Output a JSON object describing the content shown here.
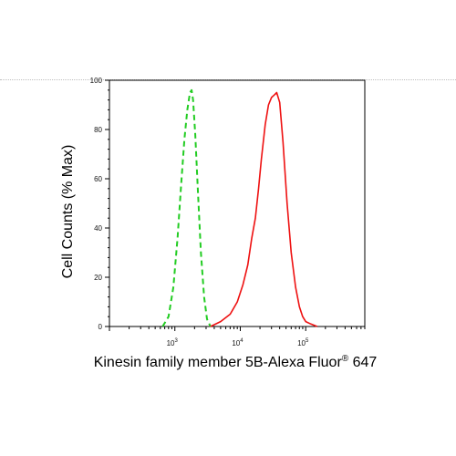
{
  "chart_data": {
    "type": "line",
    "xlabel_main": "Kinesin family member 5B-Alexa Fluor",
    "xlabel_sup": "®",
    "xlabel_tail": " 647",
    "ylabel": "Cell Counts (% Max)",
    "x_scale": "log",
    "xlim": [
      100,
      800000
    ],
    "ylim": [
      0,
      100
    ],
    "x_ticks": [
      {
        "value": 1000,
        "base": "10",
        "exp": "3"
      },
      {
        "value": 10000,
        "base": "10",
        "exp": "4"
      },
      {
        "value": 100000,
        "base": "10",
        "exp": "5"
      }
    ],
    "y_ticks": [
      "0",
      "20",
      "40",
      "60",
      "80",
      "100"
    ],
    "grid": false,
    "series": [
      {
        "color": "#22cc22",
        "dash": "dashed",
        "x": [
          650,
          800,
          950,
          1100,
          1250,
          1400,
          1550,
          1700,
          1800,
          1900,
          2050,
          2250,
          2500,
          2800,
          3100,
          3500
        ],
        "y": [
          0,
          4,
          16,
          36,
          58,
          76,
          88,
          95,
          96,
          92,
          78,
          55,
          30,
          12,
          3,
          0
        ]
      },
      {
        "color": "#ee1111",
        "dash": "solid",
        "x": [
          3500,
          5000,
          7000,
          9000,
          11000,
          13000,
          15000,
          17000,
          19000,
          21000,
          24000,
          27000,
          30000,
          33000,
          36000,
          40000,
          45000,
          52000,
          60000,
          70000,
          80000,
          90000,
          100000,
          120000,
          150000
        ],
        "y": [
          0,
          2,
          5,
          10,
          17,
          25,
          36,
          44,
          56,
          68,
          82,
          90,
          93,
          94,
          95,
          91,
          75,
          50,
          30,
          16,
          8,
          4,
          2,
          1,
          0
        ]
      }
    ]
  }
}
